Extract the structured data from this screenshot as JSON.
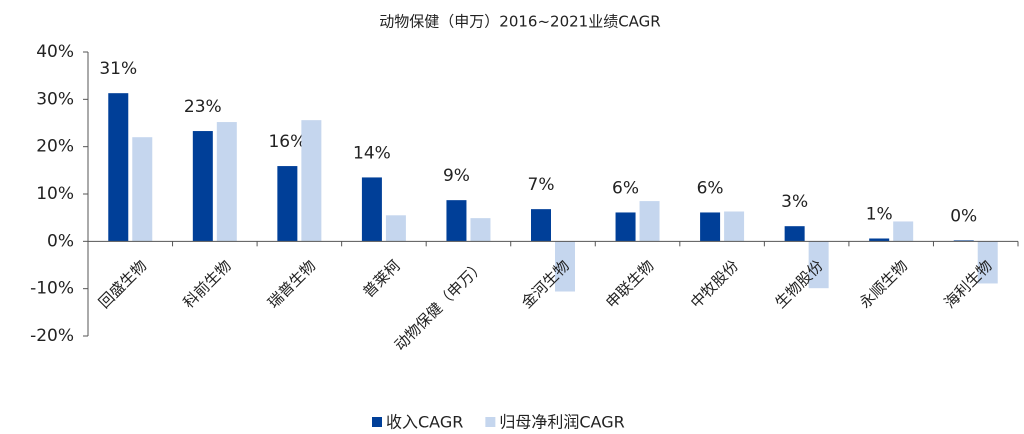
{
  "chart_data": {
    "type": "bar",
    "title": "动物保健（申万）2016~2021业绩CAGR",
    "categories": [
      "回盛生物",
      "科前生物",
      "瑞普生物",
      "普莱柯",
      "动物保健（申万）",
      "金河生物",
      "申联生物",
      "中牧股份",
      "生物股份",
      "永顺生物",
      "海利生物"
    ],
    "series": [
      {
        "name": "收入CAGR",
        "color": "#003f98",
        "values": [
          31.3,
          23.3,
          15.9,
          13.5,
          8.7,
          6.8,
          6.1,
          6.1,
          3.2,
          0.6,
          0.2
        ],
        "value_labels": [
          "31%",
          "23%",
          "16%",
          "14%",
          "9%",
          "7%",
          "6%",
          "6%",
          "3%",
          "1%",
          "0%"
        ]
      },
      {
        "name": "归母净利润CAGR",
        "color": "#c5d6ee",
        "values": [
          22.0,
          25.2,
          25.6,
          5.5,
          4.9,
          -10.6,
          8.5,
          6.3,
          -9.9,
          4.2,
          -8.9
        ]
      }
    ],
    "ylim": [
      -20,
      40
    ],
    "yticks": [
      {
        "value": -20,
        "label": "-20%"
      },
      {
        "value": -10,
        "label": "-10%"
      },
      {
        "value": 0,
        "label": "0%"
      },
      {
        "value": 10,
        "label": "10%"
      },
      {
        "value": 20,
        "label": "20%"
      },
      {
        "value": 30,
        "label": "30%"
      },
      {
        "value": 40,
        "label": "40%"
      }
    ]
  }
}
